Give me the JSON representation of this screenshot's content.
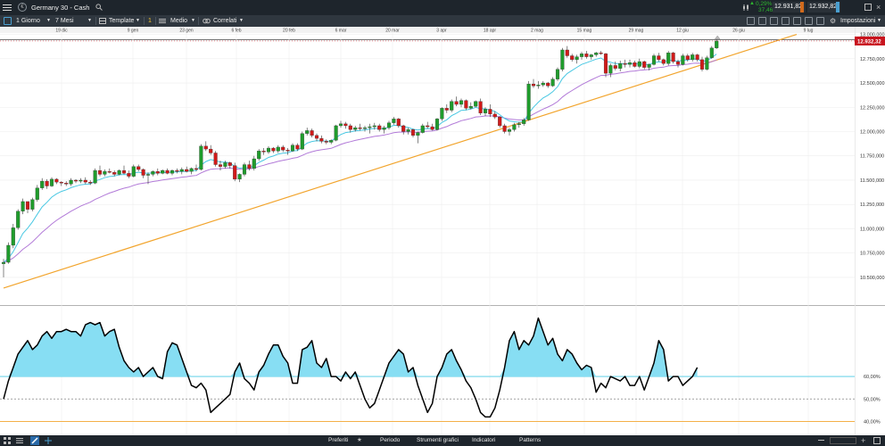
{
  "topbar": {
    "title": "Germany 30 - Cash",
    "change_pct": "0,29%",
    "change_abs": "37,46",
    "sell_price": "12.931,82",
    "buy_price": "12.932,82",
    "settings_label": "Impostazioni",
    "colors": {
      "bar": "#1e252c",
      "up": "#2fb52f",
      "sell": "#d06a1d",
      "buy": "#4a9fd0"
    }
  },
  "toolbar": {
    "interval": "1 Giorno",
    "range": "7 Mesi",
    "template_label": "Template",
    "layout_count": "1",
    "overlay_label": "Medio",
    "correlated_label": "Correlati"
  },
  "bottombar": {
    "items": [
      "Preferiti",
      "Periodo",
      "Strumenti grafici",
      "Indicatori",
      "Patterns"
    ]
  },
  "chart_data": [
    {
      "type": "candlestick",
      "x_tick_labels": [
        "19 dic",
        "9 gen",
        "23 gen",
        "6 feb",
        "20 feb",
        "6 mar",
        "20 mar",
        "3 apr",
        "18 apr",
        "2 mag",
        "15 mag",
        "29 mag",
        "12 giu",
        "26 giu",
        "9 lug"
      ],
      "y_ticks": [
        10500,
        10750,
        11000,
        11250,
        11500,
        11750,
        12000,
        12250,
        12500,
        12750,
        13000
      ],
      "y_tick_labels": [
        "10.500,000",
        "10.750,000",
        "11.000,000",
        "11.250,000",
        "11.500,000",
        "11.750,000",
        "12.000,000",
        "12.250,000",
        "12.500,000",
        "12.750,000",
        "13.000,000"
      ],
      "ylim": [
        10380,
        13005
      ],
      "last_price_label": "12.932,32",
      "last_price": 12932,
      "trendline": {
        "from": 10390,
        "to": 13000
      },
      "colors": {
        "up": "#1f9c2c",
        "down": "#d11a1a",
        "ma_fast": "#49c8e3",
        "ma_slow": "#b27ad8",
        "trendline": "#f2a52e",
        "price_tag": "#c8141e"
      },
      "candles": [
        [
          10640,
          10690,
          10500,
          10655
        ],
        [
          10655,
          10860,
          10640,
          10830
        ],
        [
          10830,
          11050,
          10800,
          11010
        ],
        [
          11010,
          11200,
          10990,
          11180
        ],
        [
          11180,
          11310,
          11150,
          11280
        ],
        [
          11280,
          11260,
          11160,
          11200
        ],
        [
          11200,
          11320,
          11180,
          11300
        ],
        [
          11300,
          11450,
          11280,
          11420
        ],
        [
          11420,
          11520,
          11400,
          11490
        ],
        [
          11490,
          11510,
          11410,
          11440
        ],
        [
          11440,
          11530,
          11430,
          11510
        ],
        [
          11510,
          11520,
          11460,
          11480
        ],
        [
          11480,
          11490,
          11440,
          11470
        ],
        [
          11470,
          11490,
          11440,
          11460
        ],
        [
          11460,
          11520,
          11440,
          11500
        ],
        [
          11500,
          11510,
          11470,
          11490
        ],
        [
          11490,
          11520,
          11470,
          11500
        ],
        [
          11500,
          11530,
          11460,
          11480
        ],
        [
          11480,
          11500,
          11450,
          11470
        ],
        [
          11470,
          11620,
          11460,
          11600
        ],
        [
          11600,
          11650,
          11540,
          11560
        ],
        [
          11560,
          11610,
          11540,
          11590
        ],
        [
          11590,
          11620,
          11570,
          11580
        ],
        [
          11580,
          11600,
          11540,
          11560
        ],
        [
          11560,
          11610,
          11550,
          11600
        ],
        [
          11600,
          11650,
          11560,
          11570
        ],
        [
          11570,
          11600,
          11520,
          11540
        ],
        [
          11540,
          11660,
          11530,
          11640
        ],
        [
          11640,
          11660,
          11590,
          11610
        ],
        [
          11610,
          11620,
          11520,
          11550
        ],
        [
          11550,
          11580,
          11460,
          11560
        ],
        [
          11560,
          11600,
          11540,
          11590
        ],
        [
          11590,
          11620,
          11550,
          11570
        ],
        [
          11570,
          11610,
          11560,
          11600
        ],
        [
          11600,
          11620,
          11560,
          11570
        ],
        [
          11570,
          11610,
          11550,
          11600
        ],
        [
          11600,
          11620,
          11570,
          11590
        ],
        [
          11590,
          11630,
          11560,
          11610
        ],
        [
          11610,
          11640,
          11580,
          11590
        ],
        [
          11590,
          11630,
          11560,
          11620
        ],
        [
          11620,
          11660,
          11590,
          11610
        ],
        [
          11610,
          11870,
          11600,
          11850
        ],
        [
          11850,
          11900,
          11800,
          11820
        ],
        [
          11820,
          11860,
          11760,
          11780
        ],
        [
          11780,
          11800,
          11640,
          11660
        ],
        [
          11660,
          11700,
          11600,
          11640
        ],
        [
          11640,
          11700,
          11620,
          11680
        ],
        [
          11680,
          11690,
          11620,
          11650
        ],
        [
          11650,
          11680,
          11490,
          11510
        ],
        [
          11510,
          11570,
          11480,
          11560
        ],
        [
          11560,
          11680,
          11540,
          11660
        ],
        [
          11660,
          11700,
          11600,
          11620
        ],
        [
          11620,
          11750,
          11600,
          11720
        ],
        [
          11720,
          11820,
          11700,
          11800
        ],
        [
          11800,
          11830,
          11760,
          11790
        ],
        [
          11790,
          11850,
          11770,
          11830
        ],
        [
          11830,
          11840,
          11780,
          11800
        ],
        [
          11800,
          11860,
          11780,
          11840
        ],
        [
          11840,
          11860,
          11790,
          11810
        ],
        [
          11810,
          11830,
          11760,
          11800
        ],
        [
          11800,
          11880,
          11790,
          11860
        ],
        [
          11860,
          11880,
          11800,
          11820
        ],
        [
          11820,
          12000,
          11810,
          11980
        ],
        [
          11980,
          12040,
          11960,
          12010
        ],
        [
          12010,
          12030,
          11940,
          11960
        ],
        [
          11960,
          11980,
          11900,
          11930
        ],
        [
          11930,
          11960,
          11880,
          11900
        ],
        [
          11900,
          11920,
          11870,
          11890
        ],
        [
          11890,
          11920,
          11870,
          11910
        ],
        [
          11910,
          12070,
          11900,
          12060
        ],
        [
          12060,
          12110,
          12040,
          12080
        ],
        [
          12080,
          12100,
          12030,
          12060
        ],
        [
          12060,
          12080,
          11990,
          12020
        ],
        [
          12020,
          12060,
          12000,
          12040
        ],
        [
          12040,
          12080,
          12010,
          12030
        ],
        [
          12030,
          12060,
          12000,
          12040
        ],
        [
          12040,
          12080,
          11980,
          12050
        ],
        [
          12050,
          12090,
          12020,
          12060
        ],
        [
          12060,
          12080,
          12000,
          12020
        ],
        [
          12020,
          12060,
          11980,
          12040
        ],
        [
          12040,
          12110,
          12020,
          12090
        ],
        [
          12090,
          12150,
          12070,
          12130
        ],
        [
          12130,
          12140,
          12040,
          12060
        ],
        [
          12060,
          12070,
          11970,
          12000
        ],
        [
          12000,
          12040,
          11970,
          12020
        ],
        [
          12020,
          12030,
          11940,
          11960
        ],
        [
          11960,
          12000,
          11880,
          11990
        ],
        [
          11990,
          12080,
          11980,
          12060
        ],
        [
          12060,
          12100,
          12030,
          12050
        ],
        [
          12050,
          12080,
          12010,
          12020
        ],
        [
          12020,
          12140,
          12010,
          12130
        ],
        [
          12130,
          12250,
          12110,
          12240
        ],
        [
          12240,
          12280,
          12190,
          12220
        ],
        [
          12220,
          12330,
          12200,
          12310
        ],
        [
          12310,
          12360,
          12260,
          12280
        ],
        [
          12280,
          12340,
          12250,
          12320
        ],
        [
          12320,
          12330,
          12220,
          12240
        ],
        [
          12240,
          12300,
          12230,
          12260
        ],
        [
          12260,
          12320,
          12250,
          12310
        ],
        [
          12310,
          12340,
          12170,
          12190
        ],
        [
          12190,
          12250,
          12160,
          12230
        ],
        [
          12230,
          12280,
          12150,
          12180
        ],
        [
          12180,
          12210,
          12130,
          12150
        ],
        [
          12150,
          12160,
          12040,
          12060
        ],
        [
          12060,
          12080,
          11980,
          12000
        ],
        [
          12000,
          12040,
          11960,
          12020
        ],
        [
          12020,
          12090,
          12000,
          12070
        ],
        [
          12070,
          12100,
          12040,
          12080
        ],
        [
          12080,
          12140,
          12060,
          12120
        ],
        [
          12120,
          12520,
          12110,
          12490
        ],
        [
          12490,
          12540,
          12450,
          12470
        ],
        [
          12470,
          12520,
          12440,
          12480
        ],
        [
          12480,
          12520,
          12460,
          12500
        ],
        [
          12500,
          12510,
          12450,
          12470
        ],
        [
          12470,
          12560,
          12460,
          12540
        ],
        [
          12540,
          12660,
          12520,
          12640
        ],
        [
          12640,
          12860,
          12620,
          12840
        ],
        [
          12840,
          12880,
          12760,
          12780
        ],
        [
          12780,
          12800,
          12720,
          12740
        ],
        [
          12740,
          12790,
          12700,
          12770
        ],
        [
          12770,
          12820,
          12740,
          12800
        ],
        [
          12800,
          12830,
          12750,
          12770
        ],
        [
          12770,
          12800,
          12740,
          12790
        ],
        [
          12790,
          12820,
          12770,
          12810
        ],
        [
          12810,
          12830,
          12790,
          12800
        ],
        [
          12800,
          12810,
          12560,
          12600
        ],
        [
          12600,
          12700,
          12560,
          12680
        ],
        [
          12680,
          12720,
          12630,
          12650
        ],
        [
          12650,
          12730,
          12620,
          12700
        ],
        [
          12700,
          12740,
          12660,
          12690
        ],
        [
          12690,
          12740,
          12660,
          12710
        ],
        [
          12710,
          12730,
          12660,
          12670
        ],
        [
          12670,
          12750,
          12650,
          12720
        ],
        [
          12720,
          12730,
          12640,
          12660
        ],
        [
          12660,
          12700,
          12630,
          12690
        ],
        [
          12690,
          12800,
          12680,
          12780
        ],
        [
          12780,
          12810,
          12720,
          12740
        ],
        [
          12740,
          12750,
          12680,
          12700
        ],
        [
          12700,
          12830,
          12680,
          12810
        ],
        [
          12810,
          12820,
          12700,
          12720
        ],
        [
          12720,
          12740,
          12660,
          12690
        ],
        [
          12690,
          12800,
          12680,
          12780
        ],
        [
          12780,
          12800,
          12720,
          12740
        ],
        [
          12740,
          12810,
          12720,
          12790
        ],
        [
          12790,
          12800,
          12720,
          12740
        ],
        [
          12740,
          12770,
          12620,
          12640
        ],
        [
          12640,
          12780,
          12630,
          12760
        ],
        [
          12760,
          12880,
          12750,
          12860
        ],
        [
          12860,
          12960,
          12850,
          12932
        ]
      ]
    },
    {
      "type": "line",
      "name": "oscillator",
      "y_ticks": [
        40,
        50,
        60
      ],
      "y_tick_labels": [
        "40,00%",
        "50,00%",
        "60,00%"
      ],
      "ylim": [
        37,
        91
      ],
      "upper_level": 60,
      "lower_level": 40,
      "mid_level": 50,
      "colors": {
        "line": "#000000",
        "fill": "#87def3",
        "upper": "#49c8e3",
        "lower": "#f2a52e"
      },
      "values": [
        50,
        58,
        64,
        70,
        73,
        76,
        72,
        74,
        78,
        80,
        77,
        80,
        80,
        81,
        80,
        80,
        78,
        83,
        84,
        83,
        84,
        78,
        80,
        81,
        73,
        67,
        64,
        62,
        64,
        60,
        62,
        64,
        60,
        59,
        71,
        75,
        74,
        68,
        62,
        56,
        55,
        57,
        54,
        44,
        46,
        48,
        50,
        52,
        62,
        66,
        59,
        57,
        54,
        62,
        65,
        70,
        74,
        74,
        69,
        66,
        57,
        57,
        72,
        73,
        76,
        66,
        64,
        68,
        60,
        60,
        58,
        62,
        59,
        62,
        56,
        50,
        46,
        48,
        54,
        60,
        66,
        69,
        72,
        70,
        62,
        64,
        56,
        50,
        44,
        48,
        60,
        64,
        70,
        72,
        67,
        63,
        58,
        55,
        50,
        44,
        42,
        42,
        46,
        54,
        64,
        76,
        80,
        72,
        76,
        74,
        78,
        86,
        80,
        74,
        77,
        70,
        67,
        72,
        70,
        66,
        63,
        65,
        64,
        53,
        57,
        55,
        60,
        59,
        58,
        60,
        56,
        56,
        60,
        54,
        60,
        66,
        76,
        72,
        58,
        60,
        60,
        56,
        58,
        60,
        64
      ]
    }
  ]
}
